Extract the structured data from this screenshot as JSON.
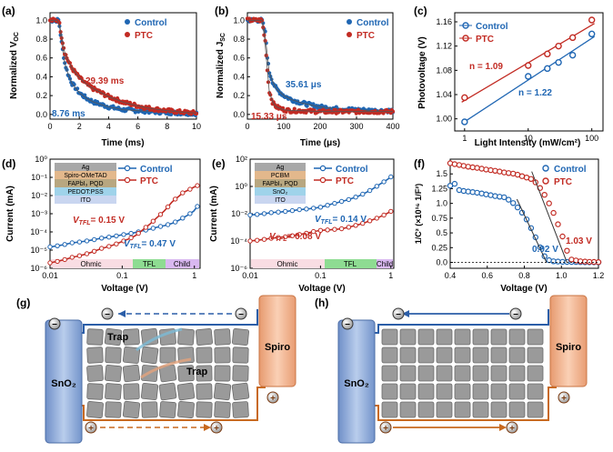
{
  "panels": {
    "a": {
      "label": "(a)",
      "ylabel": "Normalized V",
      "ylabel_sub": "OC",
      "xlabel": "Time (ms)",
      "legend": [
        "Control",
        "PTC"
      ],
      "ann_ptc": "29.39 ms",
      "ann_ctrl": "8.76 ms",
      "xticks": [
        "0",
        "2",
        "4",
        "6",
        "8",
        "10"
      ],
      "yticks": [
        "0.0",
        "0.2",
        "0.4",
        "0.6",
        "0.8",
        "1.0"
      ]
    },
    "b": {
      "label": "(b)",
      "ylabel": "Normalized J",
      "ylabel_sub": "SC",
      "xlabel": "Time (μs)",
      "legend": [
        "Control",
        "PTC"
      ],
      "ann_ctrl": "35.61 μs",
      "ann_ptc": "15.33 μs",
      "xticks": [
        "0",
        "100",
        "200",
        "300",
        "400"
      ],
      "yticks": [
        "0.0",
        "0.2",
        "0.4",
        "0.6",
        "0.8",
        "1.0"
      ]
    },
    "c": {
      "label": "(c)",
      "ylabel": "Photovoltage (V)",
      "xlabel": "Light Intensity (mW/cm²)",
      "legend": [
        "Control",
        "PTC"
      ],
      "ann_ptc": "n = 1.09",
      "ann_ctrl": "n = 1.22",
      "xticks": [
        "1",
        "10",
        "100"
      ],
      "yticks": [
        "1.00",
        "1.04",
        "1.08",
        "1.12",
        "1.16"
      ]
    },
    "d": {
      "label": "(d)",
      "ylabel": "Current (mA)",
      "xlabel": "Voltage (V)",
      "legend": [
        "Control",
        "PTC"
      ],
      "ann_ptc": "= 0.15 V",
      "ann_ctrl": "= 0.47 V",
      "vtfl_main": "V",
      "vtfl_sub": "TFL",
      "stack": [
        "Ag",
        "Spiro-OMeTAD",
        "FAPbI₃ PQD",
        "PEDOT:PSS",
        "ITO"
      ],
      "regions": [
        "Ohmic",
        "TFL",
        "Child"
      ],
      "xticks": [
        "0.01",
        "0.1",
        "1"
      ],
      "yticks": [
        "10⁻⁶",
        "10⁻⁵",
        "10⁻⁴",
        "10⁻³",
        "10⁻²",
        "10⁻¹",
        "10⁰"
      ]
    },
    "e": {
      "label": "(e)",
      "ylabel": "Current (mA)",
      "xlabel": "Voltage (V)",
      "legend": [
        "Control",
        "PTC"
      ],
      "ann_ctrl": "= 0.14 V",
      "ann_ptc": "= 0.08 V",
      "vtfl_main": "V",
      "vtfl_sub": "TFL",
      "stack": [
        "Ag",
        "PCBM",
        "FAPbI₃ PQD",
        "SnO₂",
        "ITO"
      ],
      "regions": [
        "Ohmic",
        "TFL",
        "Child"
      ],
      "xticks": [
        "0.01",
        "0.1",
        "1"
      ],
      "yticks": [
        "10⁻⁶",
        "10⁻⁴",
        "10⁻²",
        "10⁰",
        "10²"
      ]
    },
    "f": {
      "label": "(f)",
      "ylabel": "1/C² (×10¹⁶ 1/F²)",
      "xlabel": "Voltage (V)",
      "legend": [
        "Control",
        "PTC"
      ],
      "ann_ctrl": "0.92 V",
      "ann_ptc": "1.03 V",
      "xticks": [
        "0.4",
        "0.6",
        "0.8",
        "1.0",
        "1.2"
      ],
      "yticks": [
        "0.0",
        "0.25",
        "0.5",
        "0.75",
        "1.0",
        "1.25",
        "1.5"
      ]
    },
    "g": {
      "label": "(g)",
      "left": "SnO₂",
      "right": "Spiro",
      "trap1": "Trap",
      "trap2": "Trap",
      "minus": "−",
      "plus": "+"
    },
    "h": {
      "label": "(h)",
      "left": "SnO₂",
      "right": "Spiro",
      "minus": "−",
      "plus": "+"
    }
  },
  "colors": {
    "control": "#1f66b3",
    "ptc": "#c22b23",
    "fit": "#333333"
  },
  "chart_data": [
    {
      "type": "scatter",
      "title": "",
      "xlabel": "Time (ms)",
      "ylabel": "Normalized VOC",
      "xlim": [
        0,
        10
      ],
      "ylim": [
        -0.05,
        1.08
      ],
      "series": [
        {
          "name": "Control",
          "tau_ms": 8.76,
          "x": [
            0,
            0.2,
            0.4,
            0.6,
            0.8,
            1,
            1.2,
            1.5,
            2,
            2.5,
            3,
            4,
            5,
            6,
            7,
            8,
            9,
            10
          ],
          "y": [
            1,
            1,
            1,
            1,
            0.75,
            0.55,
            0.44,
            0.33,
            0.23,
            0.17,
            0.13,
            0.08,
            0.05,
            0.04,
            0.03,
            0.02,
            0.015,
            0.01
          ]
        },
        {
          "name": "PTC",
          "tau_ms": 29.39,
          "x": [
            0,
            0.2,
            0.4,
            0.6,
            0.8,
            1,
            1.2,
            1.5,
            2,
            2.5,
            3,
            4,
            5,
            6,
            7,
            8,
            9,
            10
          ],
          "y": [
            1,
            1,
            1,
            1,
            0.82,
            0.66,
            0.58,
            0.49,
            0.39,
            0.32,
            0.27,
            0.19,
            0.13,
            0.09,
            0.06,
            0.04,
            0.025,
            0.015
          ]
        }
      ]
    },
    {
      "type": "scatter",
      "title": "",
      "xlabel": "Time (μs)",
      "ylabel": "Normalized JSC",
      "xlim": [
        0,
        400
      ],
      "ylim": [
        -0.05,
        1.08
      ],
      "series": [
        {
          "name": "Control",
          "tau_us": 35.61,
          "x": [
            0,
            20,
            40,
            50,
            55,
            60,
            70,
            80,
            100,
            120,
            150,
            200,
            250,
            300,
            350,
            400
          ],
          "y": [
            1,
            1,
            1,
            0.85,
            0.6,
            0.45,
            0.34,
            0.27,
            0.2,
            0.16,
            0.12,
            0.08,
            0.06,
            0.05,
            0.04,
            0.04
          ]
        },
        {
          "name": "PTC",
          "tau_us": 15.33,
          "x": [
            0,
            20,
            40,
            50,
            55,
            60,
            70,
            80,
            100,
            120,
            150,
            200,
            250,
            300,
            350,
            400
          ],
          "y": [
            1,
            1,
            1,
            0.75,
            0.45,
            0.25,
            0.12,
            0.08,
            0.05,
            0.04,
            0.04,
            0.03,
            0.03,
            0.03,
            0.03,
            0.03
          ]
        }
      ]
    },
    {
      "type": "scatter",
      "title": "",
      "xlabel": "Light Intensity (mW/cm²)",
      "ylabel": "Photovoltage (V)",
      "xscale": "log",
      "xlim": [
        0.7,
        150
      ],
      "ylim": [
        0.98,
        1.175
      ],
      "series": [
        {
          "name": "Control",
          "n": 1.22,
          "x": [
            1,
            10,
            20,
            30,
            50,
            100
          ],
          "y": [
            0.995,
            1.07,
            1.083,
            1.093,
            1.105,
            1.14
          ]
        },
        {
          "name": "PTC",
          "n": 1.09,
          "x": [
            1,
            10,
            20,
            30,
            50,
            100
          ],
          "y": [
            1.035,
            1.088,
            1.107,
            1.12,
            1.134,
            1.163
          ]
        }
      ]
    },
    {
      "type": "line",
      "title": "",
      "xlabel": "Voltage (V)",
      "ylabel": "Current (mA)",
      "xscale": "log",
      "yscale": "log",
      "xlim": [
        0.01,
        1.2
      ],
      "ylim": [
        1e-06,
        1
      ],
      "series": [
        {
          "name": "Control",
          "VTFL": 0.47,
          "x": [
            0.01,
            0.02,
            0.05,
            0.1,
            0.2,
            0.3,
            0.5,
            0.7,
            1.0,
            1.1
          ],
          "y": [
            1.5e-05,
            2.5e-05,
            4.5e-05,
            7e-05,
            0.00012,
            0.00018,
            0.0003,
            0.0006,
            0.0015,
            0.0025
          ]
        },
        {
          "name": "PTC",
          "VTFL": 0.15,
          "x": [
            0.01,
            0.02,
            0.05,
            0.1,
            0.15,
            0.2,
            0.3,
            0.5,
            0.7,
            1.0,
            1.1
          ],
          "y": [
            2e-06,
            4e-06,
            1.2e-05,
            3e-05,
            6e-05,
            0.00015,
            0.0006,
            0.005,
            0.015,
            0.03,
            0.035
          ]
        }
      ]
    },
    {
      "type": "line",
      "title": "",
      "xlabel": "Voltage (V)",
      "ylabel": "Current (mA)",
      "xscale": "log",
      "yscale": "log",
      "xlim": [
        0.01,
        1.1
      ],
      "ylim": [
        1e-06,
        100
      ],
      "series": [
        {
          "name": "Control",
          "VTFL": 0.14,
          "x": [
            0.01,
            0.02,
            0.05,
            0.1,
            0.14,
            0.2,
            0.3,
            0.5,
            0.7,
            1.0
          ],
          "y": [
            0.008,
            0.012,
            0.02,
            0.03,
            0.05,
            0.08,
            0.15,
            0.5,
            1.5,
            5
          ]
        },
        {
          "name": "PTC",
          "VTFL": 0.08,
          "x": [
            0.01,
            0.02,
            0.05,
            0.08,
            0.1,
            0.2,
            0.3,
            0.5,
            0.7,
            1.0
          ],
          "y": [
            0.0001,
            0.00016,
            0.0003,
            0.0005,
            0.0006,
            0.0008,
            0.0013,
            0.003,
            0.006,
            0.015
          ]
        }
      ]
    },
    {
      "type": "scatter",
      "title": "",
      "xlabel": "Voltage (V)",
      "ylabel": "1/C² (×10¹⁶ 1/F²)",
      "xlim": [
        0.4,
        1.2
      ],
      "ylim": [
        -0.1,
        1.75
      ],
      "series": [
        {
          "name": "Control",
          "Vbi": 0.92,
          "x": [
            0.4,
            0.42,
            0.45,
            0.5,
            0.55,
            0.6,
            0.65,
            0.7,
            0.72,
            0.75,
            0.8,
            0.85,
            0.9,
            0.92,
            0.95,
            1.0,
            1.1,
            1.2
          ],
          "y": [
            1.3,
            1.35,
            1.22,
            1.2,
            1.18,
            1.15,
            1.12,
            1.1,
            1.05,
            0.98,
            0.8,
            0.5,
            0.15,
            0.05,
            0.02,
            0.01,
            0.005,
            0
          ]
        },
        {
          "name": "PTC",
          "Vbi": 1.03,
          "x": [
            0.4,
            0.45,
            0.5,
            0.55,
            0.6,
            0.65,
            0.7,
            0.75,
            0.8,
            0.85,
            0.9,
            0.95,
            1.0,
            1.03,
            1.05,
            1.1,
            1.15,
            1.2
          ],
          "y": [
            1.68,
            1.65,
            1.62,
            1.6,
            1.57,
            1.55,
            1.52,
            1.5,
            1.45,
            1.4,
            1.2,
            0.9,
            0.5,
            0.2,
            0.05,
            0.02,
            0.01,
            0.005
          ]
        }
      ]
    }
  ]
}
